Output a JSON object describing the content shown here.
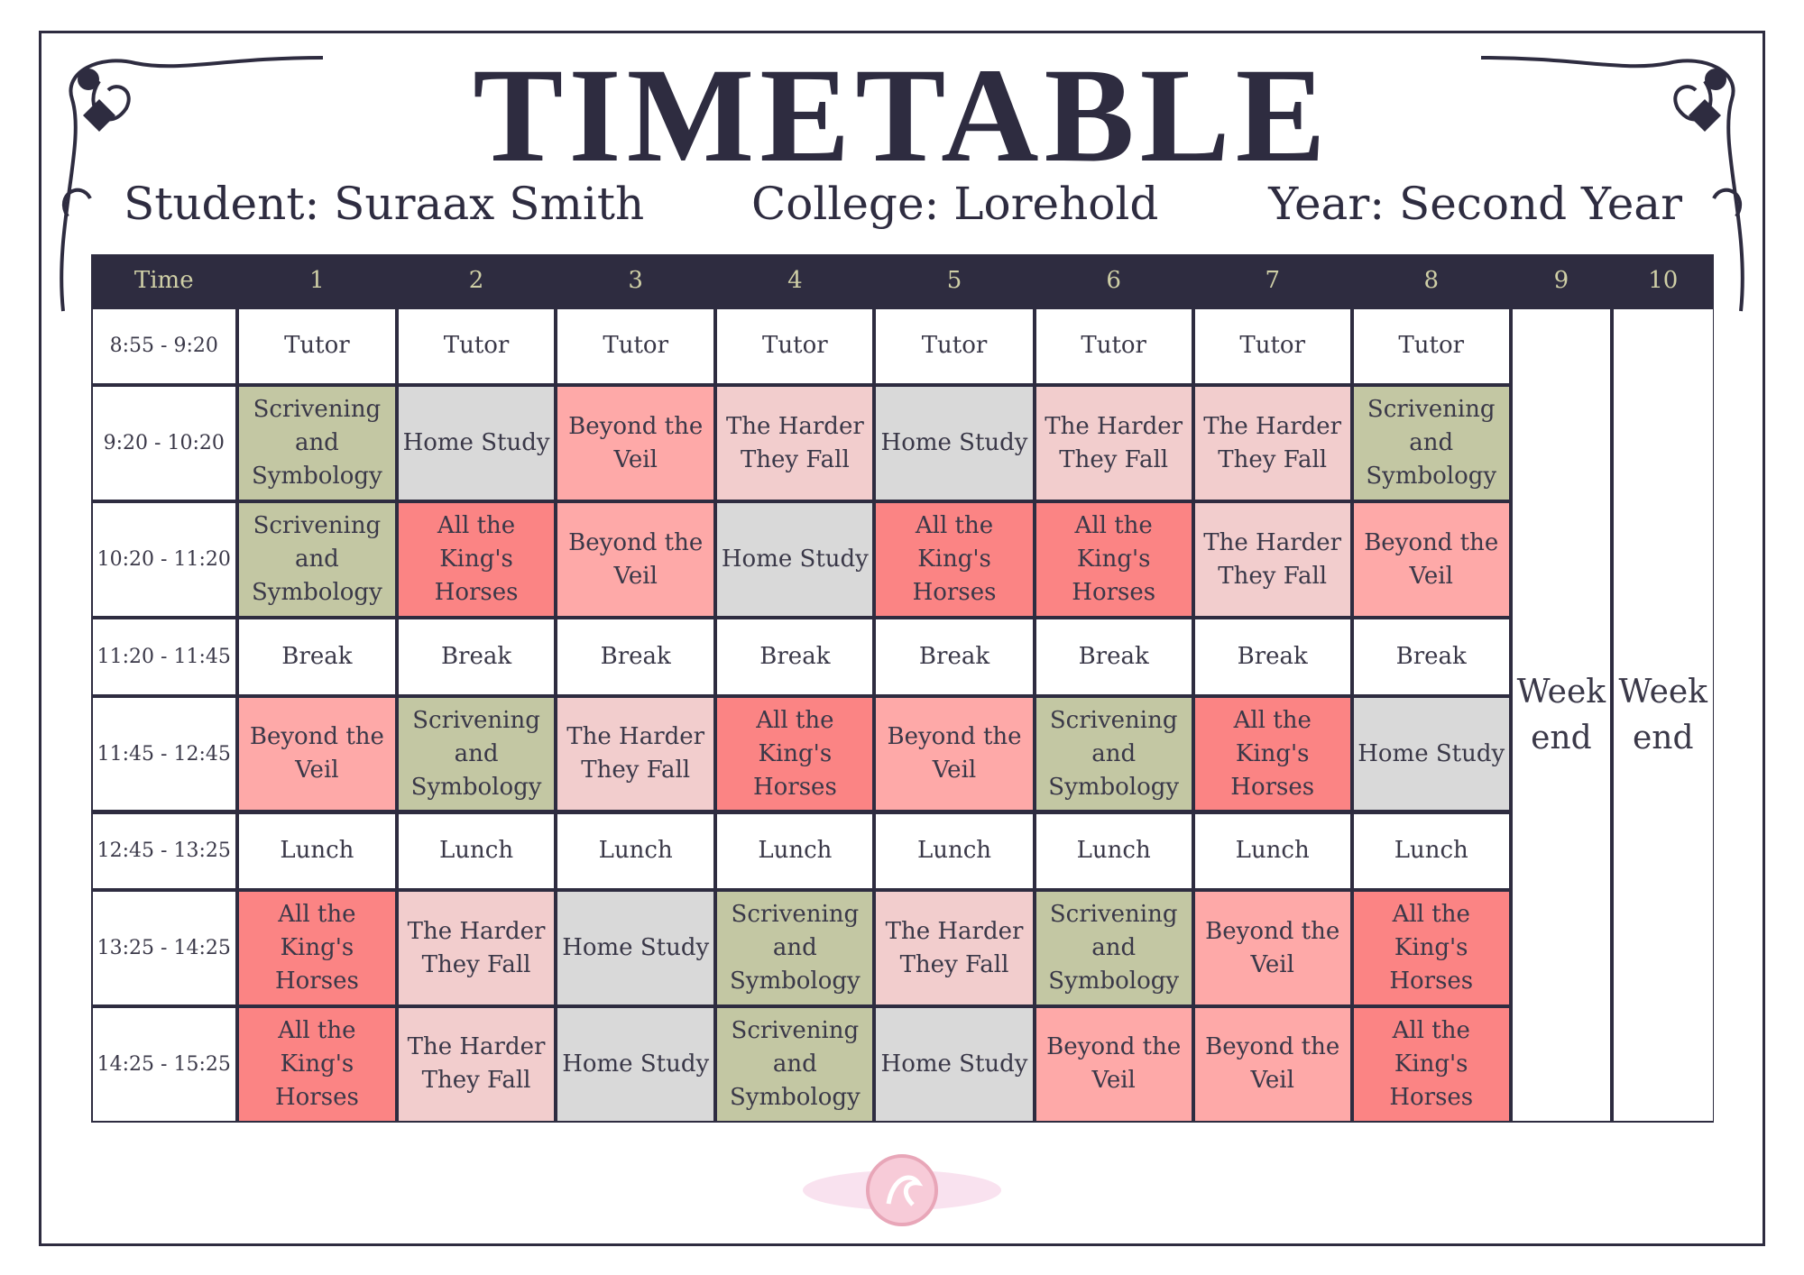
{
  "header": {
    "title": "TIMETABLE",
    "student": "Student: Suraax Smith",
    "college": "College: Lorehold",
    "year": "Year: Second Year"
  },
  "table": {
    "columns": [
      "Time",
      "1",
      "2",
      "3",
      "4",
      "5",
      "6",
      "7",
      "8",
      "9",
      "10"
    ],
    "weekend": [
      "Week end",
      "Week end"
    ],
    "rows": [
      {
        "time": "8:55 - 9:20",
        "cells": [
          "Tutor",
          "Tutor",
          "Tutor",
          "Tutor",
          "Tutor",
          "Tutor",
          "Tutor",
          "Tutor"
        ],
        "colors": [
          "#ffffff",
          "#ffffff",
          "#ffffff",
          "#ffffff",
          "#ffffff",
          "#ffffff",
          "#ffffff",
          "#ffffff"
        ]
      },
      {
        "time": "9:20 - 10:20",
        "cells": [
          "Scrivening and Symbology",
          "Home Study",
          "Beyond the Veil",
          "The Harder They Fall",
          "Home Study",
          "The Harder They Fall",
          "The Harder They Fall",
          "Scrivening and Symbology"
        ],
        "colors": [
          "#c3c7a3",
          "#d9d9d9",
          "#fea9a8",
          "#f2cdcd",
          "#d9d9d9",
          "#f2cdcd",
          "#f2cdcd",
          "#c3c7a3"
        ]
      },
      {
        "time": "10:20 - 11:20",
        "cells": [
          "Scrivening and Symbology",
          "All the King's Horses",
          "Beyond the Veil",
          "Home Study",
          "All the King's Horses",
          "All the King's Horses",
          "The Harder They Fall",
          "Beyond the Veil"
        ],
        "colors": [
          "#c3c7a3",
          "#fb8484",
          "#fea9a8",
          "#d9d9d9",
          "#fb8484",
          "#fb8484",
          "#f2cdcd",
          "#fea9a8"
        ]
      },
      {
        "time": "11:20 - 11:45",
        "cells": [
          "Break",
          "Break",
          "Break",
          "Break",
          "Break",
          "Break",
          "Break",
          "Break"
        ],
        "colors": [
          "#ffffff",
          "#ffffff",
          "#ffffff",
          "#ffffff",
          "#ffffff",
          "#ffffff",
          "#ffffff",
          "#ffffff"
        ]
      },
      {
        "time": "11:45 - 12:45",
        "cells": [
          "Beyond the Veil",
          "Scrivening and Symbology",
          "The Harder They Fall",
          "All the King's Horses",
          "Beyond the Veil",
          "Scrivening and Symbology",
          "All the King's Horses",
          "Home Study"
        ],
        "colors": [
          "#fea9a8",
          "#c3c7a3",
          "#f2cdcd",
          "#fb8484",
          "#fea9a8",
          "#c3c7a3",
          "#fb8484",
          "#d9d9d9"
        ]
      },
      {
        "time": "12:45 - 13:25",
        "cells": [
          "Lunch",
          "Lunch",
          "Lunch",
          "Lunch",
          "Lunch",
          "Lunch",
          "Lunch",
          "Lunch"
        ],
        "colors": [
          "#ffffff",
          "#ffffff",
          "#ffffff",
          "#ffffff",
          "#ffffff",
          "#ffffff",
          "#ffffff",
          "#ffffff"
        ]
      },
      {
        "time": "13:25 - 14:25",
        "cells": [
          "All the King's Horses",
          "The Harder They Fall",
          "Home Study",
          "Scrivening and Symbology",
          "The Harder They Fall",
          "Scrivening and Symbology",
          "Beyond the Veil",
          "All the King's Horses"
        ],
        "colors": [
          "#fb8484",
          "#f2cdcd",
          "#d9d9d9",
          "#c3c7a3",
          "#f2cdcd",
          "#c3c7a3",
          "#fea9a8",
          "#fb8484"
        ]
      },
      {
        "time": "14:25 - 15:25",
        "cells": [
          "All the King's Horses",
          "The Harder They Fall",
          "Home Study",
          "Scrivening and Symbology",
          "Home Study",
          "Beyond the Veil",
          "Beyond the Veil",
          "All the King's Horses"
        ],
        "colors": [
          "#fb8484",
          "#f2cdcd",
          "#d9d9d9",
          "#c3c7a3",
          "#d9d9d9",
          "#fea9a8",
          "#fea9a8",
          "#fb8484"
        ]
      }
    ]
  }
}
